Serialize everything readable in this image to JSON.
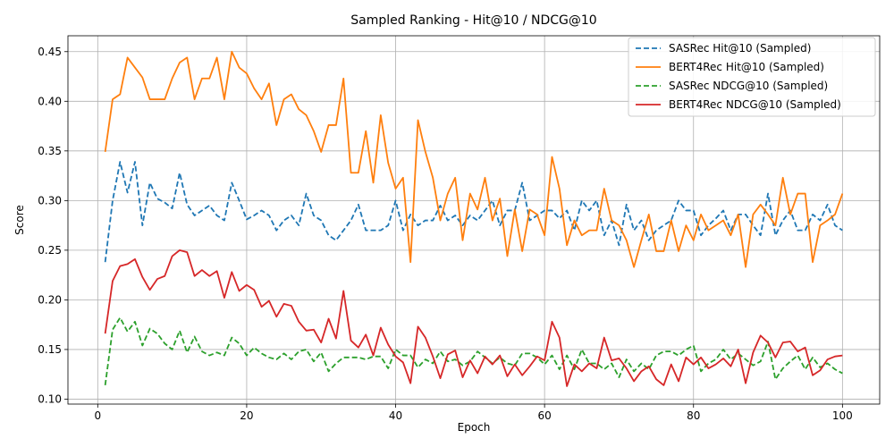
{
  "chart_data": {
    "type": "line",
    "title": "Sampled Ranking - Hit@10 / NDCG@10",
    "xlabel": "Epoch",
    "ylabel": "Score",
    "xlim": [
      -4,
      105
    ],
    "ylim": [
      0.095,
      0.466
    ],
    "xticks": [
      0,
      20,
      40,
      60,
      80,
      100
    ],
    "yticks": [
      0.1,
      0.15,
      0.2,
      0.25,
      0.3,
      0.35,
      0.4,
      0.45
    ],
    "grid": true,
    "legend_position": "top-right",
    "x": [
      1,
      2,
      3,
      4,
      5,
      6,
      7,
      8,
      9,
      10,
      11,
      12,
      13,
      14,
      15,
      16,
      17,
      18,
      19,
      20,
      21,
      22,
      23,
      24,
      25,
      26,
      27,
      28,
      29,
      30,
      31,
      32,
      33,
      34,
      35,
      36,
      37,
      38,
      39,
      40,
      41,
      42,
      43,
      44,
      45,
      46,
      47,
      48,
      49,
      50,
      51,
      52,
      53,
      54,
      55,
      56,
      57,
      58,
      59,
      60,
      61,
      62,
      63,
      64,
      65,
      66,
      67,
      68,
      69,
      70,
      71,
      72,
      73,
      74,
      75,
      76,
      77,
      78,
      79,
      80,
      81,
      82,
      83,
      84,
      85,
      86,
      87,
      88,
      89,
      90,
      91,
      92,
      93,
      94,
      95,
      96,
      97,
      98,
      99,
      100
    ],
    "series": [
      {
        "name": "SASRec Hit@10 (Sampled)",
        "color": "#1f77b4",
        "dash": true,
        "values": [
          0.238,
          0.3,
          0.339,
          0.308,
          0.339,
          0.275,
          0.318,
          0.302,
          0.298,
          0.292,
          0.328,
          0.296,
          0.285,
          0.29,
          0.295,
          0.285,
          0.28,
          0.318,
          0.3,
          0.281,
          0.285,
          0.29,
          0.285,
          0.27,
          0.28,
          0.285,
          0.275,
          0.307,
          0.285,
          0.28,
          0.265,
          0.26,
          0.27,
          0.28,
          0.296,
          0.27,
          0.27,
          0.27,
          0.275,
          0.3,
          0.27,
          0.286,
          0.275,
          0.28,
          0.28,
          0.295,
          0.28,
          0.285,
          0.275,
          0.285,
          0.28,
          0.29,
          0.3,
          0.275,
          0.29,
          0.29,
          0.318,
          0.28,
          0.285,
          0.29,
          0.29,
          0.282,
          0.29,
          0.27,
          0.3,
          0.29,
          0.3,
          0.265,
          0.28,
          0.255,
          0.296,
          0.27,
          0.28,
          0.26,
          0.27,
          0.275,
          0.28,
          0.3,
          0.29,
          0.29,
          0.265,
          0.275,
          0.282,
          0.29,
          0.27,
          0.286,
          0.286,
          0.275,
          0.265,
          0.307,
          0.265,
          0.28,
          0.29,
          0.27,
          0.27,
          0.286,
          0.28,
          0.296,
          0.275,
          0.27
        ]
      },
      {
        "name": "BERT4Rec Hit@10 (Sampled)",
        "color": "#ff7f0e",
        "dash": false,
        "values": [
          0.349,
          0.402,
          0.407,
          0.444,
          0.434,
          0.424,
          0.402,
          0.402,
          0.402,
          0.423,
          0.439,
          0.444,
          0.402,
          0.423,
          0.423,
          0.444,
          0.402,
          0.45,
          0.434,
          0.428,
          0.413,
          0.402,
          0.418,
          0.376,
          0.402,
          0.407,
          0.392,
          0.386,
          0.37,
          0.349,
          0.376,
          0.376,
          0.423,
          0.328,
          0.328,
          0.37,
          0.318,
          0.386,
          0.338,
          0.312,
          0.323,
          0.238,
          0.381,
          0.349,
          0.323,
          0.28,
          0.307,
          0.323,
          0.26,
          0.307,
          0.291,
          0.323,
          0.28,
          0.302,
          0.244,
          0.291,
          0.249,
          0.291,
          0.286,
          0.265,
          0.344,
          0.312,
          0.255,
          0.28,
          0.265,
          0.27,
          0.27,
          0.312,
          0.28,
          0.275,
          0.26,
          0.233,
          0.26,
          0.286,
          0.249,
          0.249,
          0.28,
          0.249,
          0.275,
          0.26,
          0.286,
          0.27,
          0.275,
          0.28,
          0.265,
          0.286,
          0.233,
          0.286,
          0.296,
          0.286,
          0.275,
          0.323,
          0.286,
          0.307,
          0.307,
          0.238,
          0.275,
          0.28,
          0.286,
          0.307
        ]
      },
      {
        "name": "SASRec NDCG@10 (Sampled)",
        "color": "#2ca02c",
        "dash": true,
        "values": [
          0.114,
          0.17,
          0.182,
          0.168,
          0.178,
          0.154,
          0.171,
          0.166,
          0.156,
          0.15,
          0.169,
          0.147,
          0.163,
          0.148,
          0.144,
          0.147,
          0.144,
          0.162,
          0.156,
          0.144,
          0.152,
          0.146,
          0.142,
          0.14,
          0.146,
          0.14,
          0.148,
          0.15,
          0.138,
          0.147,
          0.128,
          0.136,
          0.142,
          0.142,
          0.142,
          0.14,
          0.143,
          0.143,
          0.131,
          0.15,
          0.144,
          0.144,
          0.132,
          0.14,
          0.136,
          0.148,
          0.138,
          0.14,
          0.134,
          0.138,
          0.148,
          0.142,
          0.136,
          0.142,
          0.136,
          0.134,
          0.146,
          0.146,
          0.142,
          0.135,
          0.144,
          0.13,
          0.144,
          0.13,
          0.15,
          0.136,
          0.136,
          0.13,
          0.136,
          0.122,
          0.14,
          0.128,
          0.136,
          0.13,
          0.144,
          0.148,
          0.148,
          0.144,
          0.15,
          0.154,
          0.128,
          0.136,
          0.14,
          0.15,
          0.14,
          0.146,
          0.14,
          0.134,
          0.138,
          0.158,
          0.12,
          0.131,
          0.138,
          0.144,
          0.13,
          0.142,
          0.132,
          0.136,
          0.13,
          0.126
        ]
      },
      {
        "name": "BERT4Rec NDCG@10 (Sampled)",
        "color": "#d62728",
        "dash": false,
        "values": [
          0.166,
          0.219,
          0.234,
          0.236,
          0.241,
          0.223,
          0.21,
          0.221,
          0.224,
          0.244,
          0.25,
          0.248,
          0.224,
          0.23,
          0.224,
          0.229,
          0.202,
          0.228,
          0.209,
          0.215,
          0.21,
          0.193,
          0.199,
          0.183,
          0.196,
          0.194,
          0.178,
          0.169,
          0.17,
          0.157,
          0.181,
          0.161,
          0.209,
          0.159,
          0.152,
          0.165,
          0.144,
          0.172,
          0.155,
          0.143,
          0.137,
          0.116,
          0.173,
          0.162,
          0.143,
          0.121,
          0.145,
          0.149,
          0.122,
          0.139,
          0.126,
          0.143,
          0.135,
          0.144,
          0.123,
          0.135,
          0.124,
          0.133,
          0.143,
          0.139,
          0.178,
          0.162,
          0.113,
          0.135,
          0.128,
          0.136,
          0.131,
          0.162,
          0.139,
          0.141,
          0.131,
          0.118,
          0.128,
          0.133,
          0.12,
          0.114,
          0.135,
          0.118,
          0.142,
          0.135,
          0.142,
          0.131,
          0.135,
          0.141,
          0.133,
          0.15,
          0.116,
          0.147,
          0.164,
          0.157,
          0.142,
          0.157,
          0.158,
          0.148,
          0.152,
          0.124,
          0.129,
          0.14,
          0.143,
          0.144
        ]
      }
    ]
  }
}
